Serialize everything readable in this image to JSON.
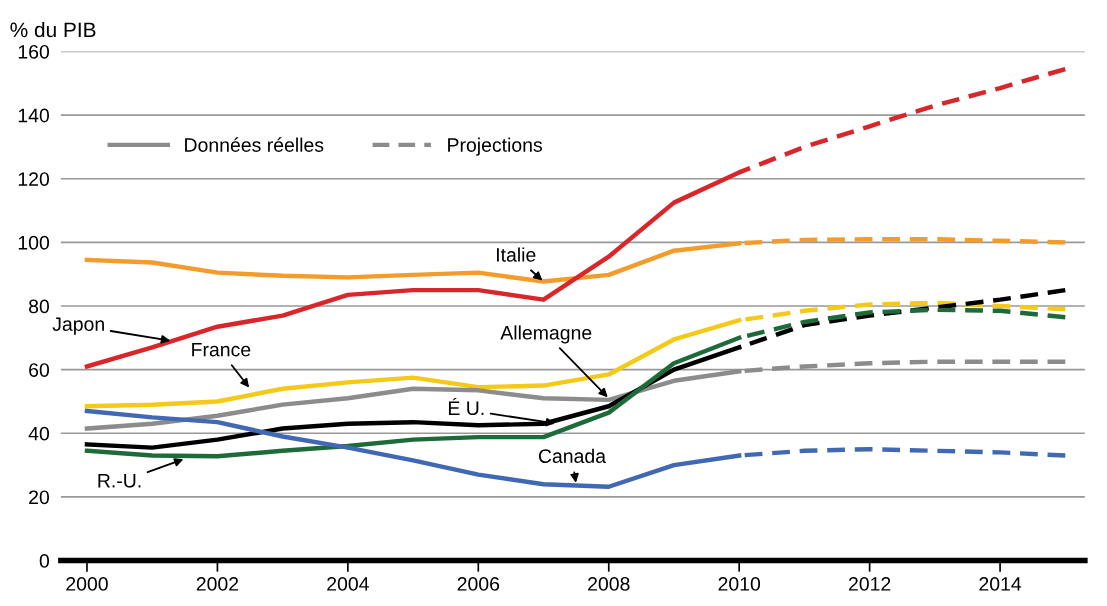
{
  "chart_data": {
    "type": "line",
    "ylabel": "% du PIB",
    "xlim": [
      1999.6,
      2015.3
    ],
    "ylim": [
      0,
      160
    ],
    "xticks": [
      2000,
      2002,
      2004,
      2006,
      2008,
      2010,
      2012,
      2014
    ],
    "yticks": [
      0,
      20,
      40,
      60,
      80,
      100,
      120,
      140,
      160
    ],
    "grid": "y",
    "legend": "top left",
    "marker": "none",
    "series": [
      {
        "color": "#f39c2c",
        "line_style": "solid",
        "x": [
          2000,
          2001,
          2002,
          2003,
          2004,
          2005,
          2006,
          2007,
          2008,
          2009,
          2010
        ],
        "values": [
          94.5,
          93.7,
          90.5,
          89.5,
          89,
          89.8,
          90.5,
          87.7,
          89.8,
          97.4,
          99.7
        ]
      },
      {
        "color": "#f39c2c",
        "line_style": "dashed",
        "x": [
          2010,
          2011,
          2012,
          2013,
          2014,
          2015
        ],
        "values": [
          99.7,
          100.8,
          101,
          101,
          100.5,
          100
        ]
      },
      {
        "color": "#d9262b",
        "line_style": "solid",
        "x": [
          2000,
          2001,
          2002,
          2003,
          2004,
          2005,
          2006,
          2007,
          2008,
          2009,
          2010
        ],
        "values": [
          61,
          67,
          73.5,
          77,
          83.5,
          85,
          85,
          82,
          95.5,
          112.5,
          122
        ]
      },
      {
        "color": "#d9262b",
        "line_style": "dashed",
        "x": [
          2010,
          2011,
          2012,
          2013,
          2014,
          2015
        ],
        "values": [
          122,
          130,
          136.5,
          143,
          148.5,
          154.5
        ]
      },
      {
        "color": "#f5c918",
        "line_style": "solid",
        "x": [
          2000,
          2001,
          2002,
          2003,
          2004,
          2005,
          2006,
          2007,
          2008,
          2009,
          2010
        ],
        "values": [
          48.5,
          49,
          50,
          54,
          56,
          57.5,
          54.5,
          55,
          58.5,
          69.5,
          75.5
        ]
      },
      {
        "color": "#f5c918",
        "line_style": "dashed",
        "x": [
          2010,
          2011,
          2012,
          2013,
          2014,
          2015
        ],
        "values": [
          75.5,
          78.5,
          80.5,
          81,
          80,
          79
        ]
      },
      {
        "name": "Données réelles",
        "color": "#8c8c8c",
        "line_style": "solid",
        "x": [
          2000,
          2001,
          2002,
          2003,
          2004,
          2005,
          2006,
          2007,
          2008,
          2009,
          2010
        ],
        "values": [
          41.5,
          43,
          45.5,
          49,
          51,
          54,
          53.5,
          51,
          50.5,
          56.5,
          59.5
        ]
      },
      {
        "name": "Projections",
        "color": "#8c8c8c",
        "line_style": "dashed",
        "x": [
          2010,
          2011,
          2012,
          2013,
          2014,
          2015
        ],
        "values": [
          59.5,
          61,
          62,
          62.5,
          62.5,
          62.5
        ]
      },
      {
        "color": "#000000",
        "line_style": "solid",
        "x": [
          2000,
          2001,
          2002,
          2003,
          2004,
          2005,
          2006,
          2007,
          2008,
          2009,
          2010
        ],
        "values": [
          36.5,
          35.5,
          38,
          41.5,
          43,
          43.5,
          42.5,
          43,
          48.5,
          60,
          67
        ]
      },
      {
        "color": "#000000",
        "line_style": "dashed",
        "x": [
          2010,
          2011,
          2012,
          2013,
          2014,
          2015
        ],
        "values": [
          67,
          74,
          77,
          79.5,
          82,
          85
        ]
      },
      {
        "color": "#1e6b3a",
        "line_style": "solid",
        "x": [
          2000,
          2001,
          2002,
          2003,
          2004,
          2005,
          2006,
          2007,
          2008,
          2009,
          2010
        ],
        "values": [
          34.5,
          33,
          32.8,
          34.5,
          36,
          38,
          38.8,
          38.8,
          46.5,
          62,
          70
        ]
      },
      {
        "color": "#1e6b3a",
        "line_style": "dashed",
        "x": [
          2010,
          2011,
          2012,
          2013,
          2014,
          2015
        ],
        "values": [
          70,
          75,
          78,
          78.8,
          78.5,
          76.5
        ]
      },
      {
        "color": "#4169b3",
        "line_style": "solid",
        "x": [
          2000,
          2001,
          2002,
          2003,
          2004,
          2005,
          2006,
          2007,
          2008,
          2009,
          2010
        ],
        "values": [
          47,
          45,
          43.5,
          39,
          35.5,
          31.5,
          27,
          24,
          23.2,
          30,
          33
        ]
      },
      {
        "color": "#4169b3",
        "line_style": "dashed",
        "x": [
          2010,
          2011,
          2012,
          2013,
          2014,
          2015
        ],
        "values": [
          33,
          34.5,
          35,
          34.5,
          34,
          33
        ]
      }
    ],
    "annotations": [
      {
        "text": "Italie",
        "x": 2007,
        "y": 87.7
      },
      {
        "text": "Japon",
        "x": 2001.3,
        "y": 69
      },
      {
        "text": "France",
        "x": 2002.5,
        "y": 54
      },
      {
        "text": "Allemagne",
        "x": 2008,
        "y": 51
      },
      {
        "text": "É U.",
        "x": 2007.2,
        "y": 43
      },
      {
        "text": "Canada",
        "x": 2007.5,
        "y": 24
      },
      {
        "text": "R.-U.",
        "x": 2001.5,
        "y": 32
      }
    ]
  }
}
